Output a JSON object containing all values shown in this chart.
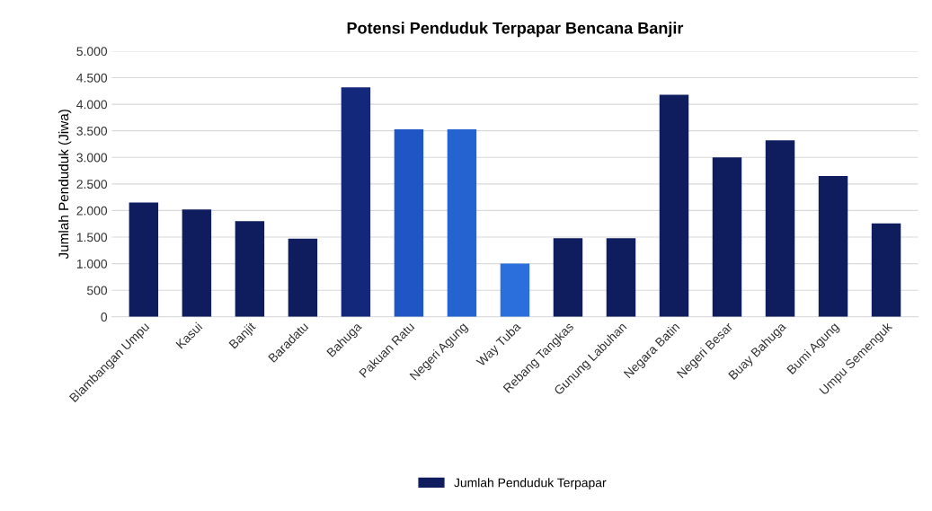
{
  "chart_data": {
    "type": "bar",
    "title": "Potensi Penduduk Terpapar Bencana Banjir",
    "ylabel": "Jumlah Penduduk (Jiwa)",
    "categories": [
      "Blambangan Umpu",
      "Kasui",
      "Banjit",
      "Baradatu",
      "Bahuga",
      "Pakuan Ratu",
      "Negeri Agung",
      "Way Tuba",
      "Rebang Tangkas",
      "Gunung Labuhan",
      "Negara Batin",
      "Negeri Besar",
      "Buay Bahuga",
      "Bumi Agung",
      "Umpu Semenguk"
    ],
    "series": [
      {
        "name": "Jumlah Penduduk Terpapar",
        "color": "#0f1d5e",
        "colors": [
          "#0f1d5e",
          "#0f1d5e",
          "#0f1d5e",
          "#0f1d5e",
          "#13287a",
          "#1f55c4",
          "#2463d0",
          "#2a6fdc",
          "#0f1d5e",
          "#0f1d5e",
          "#0f1d5e",
          "#0f1d5e",
          "#0f1d5e",
          "#0f1d5e",
          "#0f1d5e"
        ],
        "values": [
          2150,
          2020,
          1800,
          1470,
          4320,
          3530,
          3530,
          1000,
          1480,
          1480,
          4180,
          3000,
          3320,
          2650,
          1760
        ]
      }
    ],
    "ylim": [
      0,
      5000
    ],
    "yticks": [
      0,
      500,
      {
        "value": 1000,
        "label": "1.000"
      },
      {
        "value": 1500,
        "label": "1.500"
      },
      {
        "value": 2000,
        "label": "2.000"
      },
      {
        "value": 2500,
        "label": "2.500"
      },
      {
        "value": 3000,
        "label": "3.000"
      },
      {
        "value": 3500,
        "label": "3.500"
      },
      {
        "value": 4000,
        "label": "4.000"
      },
      {
        "value": 4500,
        "label": "4.500"
      },
      {
        "value": 5000,
        "label": "5.000"
      }
    ],
    "grid": "y",
    "legend": "bottom"
  }
}
